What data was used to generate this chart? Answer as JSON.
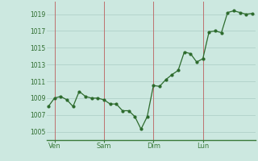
{
  "x": [
    0,
    1,
    2,
    3,
    4,
    5,
    6,
    7,
    8,
    9,
    10,
    11,
    12,
    13,
    14,
    15,
    16,
    17,
    18,
    19,
    20,
    21,
    22,
    23,
    24,
    25,
    26,
    27,
    28,
    29,
    30,
    31,
    32,
    33
  ],
  "y": [
    1008.0,
    1009.0,
    1009.2,
    1008.8,
    1008.0,
    1009.8,
    1009.2,
    1009.0,
    1009.0,
    1008.8,
    1008.3,
    1008.3,
    1007.5,
    1007.5,
    1006.8,
    1005.3,
    1006.8,
    1010.5,
    1010.4,
    1011.2,
    1011.8,
    1012.3,
    1014.5,
    1014.3,
    1013.3,
    1013.7,
    1016.9,
    1017.0,
    1016.8,
    1019.2,
    1019.4,
    1019.2,
    1019.0,
    1019.1
  ],
  "xtick_positions": [
    1,
    9,
    17,
    25
  ],
  "xtick_labels": [
    "Ven",
    "Sam",
    "Dim",
    "Lun"
  ],
  "vline_positions": [
    1,
    9,
    17,
    25
  ],
  "ytick_values": [
    1005,
    1007,
    1009,
    1011,
    1013,
    1015,
    1017,
    1019
  ],
  "ylim": [
    1004.0,
    1020.5
  ],
  "xlim": [
    -0.3,
    33.5
  ],
  "line_color": "#2d6b2d",
  "marker_color": "#2d6b2d",
  "bg_color": "#cce8e0",
  "grid_color": "#aaccc4",
  "vline_color": "#c06060",
  "axis_color": "#2d6b2d",
  "bottom_spine_color": "#3a7a3a"
}
